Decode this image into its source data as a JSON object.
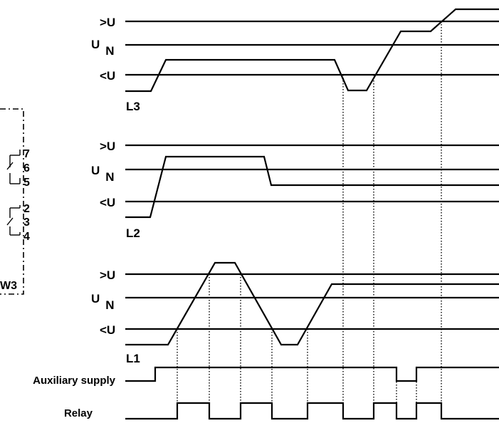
{
  "device_symbol": {
    "label_partial": "W3",
    "pins": [
      "7",
      "6",
      "5",
      "2",
      "3",
      "4"
    ]
  },
  "phases": [
    {
      "name": "L3",
      "levels": {
        "over": ">U",
        "nominal": "U",
        "nominal_sub": "N",
        "under": "<U"
      }
    },
    {
      "name": "L2",
      "levels": {
        "over": ">U",
        "nominal": "U",
        "nominal_sub": "N",
        "under": "<U"
      }
    },
    {
      "name": "L1",
      "levels": {
        "over": ">U",
        "nominal": "U",
        "nominal_sub": "N",
        "under": "<U"
      }
    }
  ],
  "signals": {
    "auxiliary": "Auxiliary supply",
    "relay": "Relay"
  }
}
